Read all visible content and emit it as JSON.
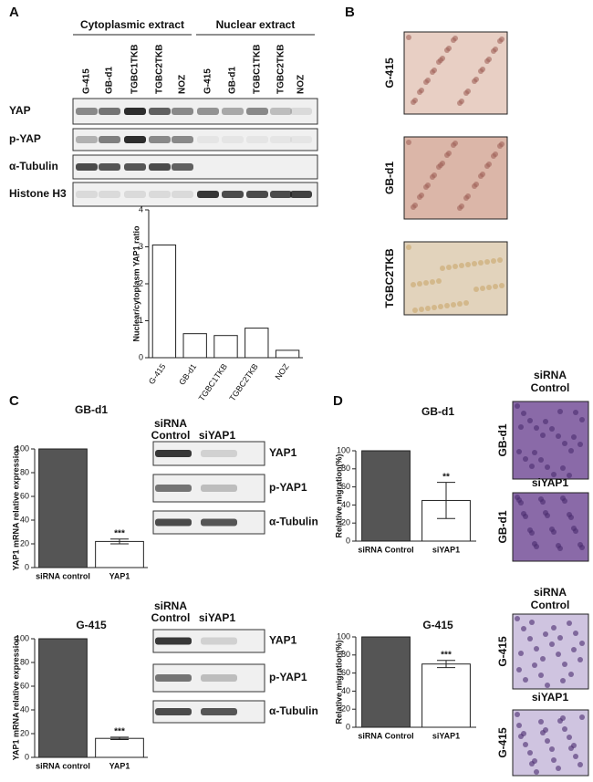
{
  "panel_labels": [
    "A",
    "B",
    "C",
    "D"
  ],
  "blot_a": {
    "headers": [
      "Cytoplasmic extract",
      "Nuclear extract"
    ],
    "lanes": [
      "G-415",
      "GB-d1",
      "TGBC1TKB",
      "TGBC2TKB",
      "NOZ",
      "G-415",
      "GB-d1",
      "TGBC1TKB",
      "TGBC2TKB",
      "NOZ"
    ],
    "rows": [
      "YAP",
      "p-YAP",
      "α-Tubulin",
      "Histone H3"
    ]
  },
  "images_b": {
    "labels": [
      "G-415",
      "GB-d1",
      "TGBC2TKB"
    ]
  },
  "blots_c": [
    {
      "header": [
        "siRNA",
        "Control",
        "siYAP1"
      ],
      "rows": [
        "YAP1",
        "p-YAP1",
        "α-Tubulin"
      ]
    },
    {
      "header": [
        "siRNA",
        "Control",
        "siYAP1"
      ],
      "rows": [
        "YAP1",
        "p-YAP1",
        "α-Tubulin"
      ]
    }
  ],
  "images_d": [
    {
      "header": [
        "siRNA",
        "Control"
      ],
      "label": "GB-d1"
    },
    {
      "header": [
        "siYAP1"
      ],
      "label": "GB-d1"
    },
    {
      "header": [
        "siRNA",
        "Control"
      ],
      "label": "G-415"
    },
    {
      "header": [
        "siYAP1"
      ],
      "label": "G-415"
    }
  ],
  "chart_data": [
    {
      "type": "bar",
      "ylabel": "Nuclear/cytoplasm YAP1 ratio",
      "categories": [
        "G-415",
        "GB-d1",
        "TGBC1TKB",
        "TGBC2TKB",
        "NOZ"
      ],
      "values": [
        3.05,
        0.65,
        0.6,
        0.8,
        0.2
      ],
      "colors": [
        "#ffffff",
        "#ffffff",
        "#ffffff",
        "#ffffff",
        "#ffffff"
      ],
      "ylim": [
        0,
        4
      ],
      "yticks": [
        0,
        1,
        2,
        3,
        4
      ]
    },
    {
      "type": "bar",
      "title": "GB-d1",
      "ylabel": "YAP1 mRNA relative expression",
      "categories": [
        "siRNA control",
        "YAP1"
      ],
      "values": [
        100,
        22
      ],
      "errors": [
        null,
        2
      ],
      "annotations": [
        null,
        "***"
      ],
      "colors": [
        "#555555",
        "#ffffff"
      ],
      "ylim": [
        0,
        100
      ],
      "yticks": [
        0,
        20,
        40,
        60,
        80,
        100
      ]
    },
    {
      "type": "bar",
      "title": "G-415",
      "ylabel": "YAP1 mRNA relative expression",
      "categories": [
        "siRNA control",
        "YAP1"
      ],
      "values": [
        100,
        16
      ],
      "errors": [
        null,
        1
      ],
      "annotations": [
        null,
        "***"
      ],
      "colors": [
        "#555555",
        "#ffffff"
      ],
      "ylim": [
        0,
        100
      ],
      "yticks": [
        0,
        20,
        40,
        60,
        80,
        100
      ]
    },
    {
      "type": "bar",
      "title": "GB-d1",
      "ylabel": "Relative migration(%)",
      "categories": [
        "siRNA Control",
        "siYAP1"
      ],
      "values": [
        100,
        45
      ],
      "errors": [
        null,
        20
      ],
      "annotations": [
        null,
        "**"
      ],
      "colors": [
        "#555555",
        "#ffffff"
      ],
      "ylim": [
        0,
        100
      ],
      "yticks": [
        0,
        20,
        40,
        60,
        80,
        100
      ]
    },
    {
      "type": "bar",
      "title": "G-415",
      "ylabel": "Relative migration(%)",
      "categories": [
        "siRNA Control",
        "siYAP1"
      ],
      "values": [
        100,
        70
      ],
      "errors": [
        null,
        4
      ],
      "annotations": [
        null,
        "***"
      ],
      "colors": [
        "#555555",
        "#ffffff"
      ],
      "ylim": [
        0,
        100
      ],
      "yticks": [
        0,
        20,
        40,
        60,
        80,
        100
      ]
    }
  ]
}
